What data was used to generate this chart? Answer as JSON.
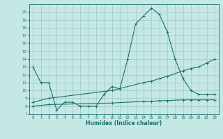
{
  "title": "",
  "xlabel": "Humidex (Indice chaleur)",
  "xlim": [
    -0.5,
    23.5
  ],
  "ylim": [
    7,
    21
  ],
  "yticks": [
    7,
    8,
    9,
    10,
    11,
    12,
    13,
    14,
    15,
    16,
    17,
    18,
    19,
    20
  ],
  "xticks": [
    0,
    1,
    2,
    3,
    4,
    5,
    6,
    7,
    8,
    9,
    10,
    11,
    12,
    13,
    14,
    15,
    16,
    17,
    18,
    19,
    20,
    21,
    22,
    23
  ],
  "background_color": "#c5e8e5",
  "grid_color": "#9dc8c5",
  "line_color": "#1a7070",
  "line1_x": [
    0,
    1,
    2,
    3,
    4,
    5,
    6,
    7,
    8,
    9,
    10,
    11,
    12,
    13,
    14,
    15,
    16,
    17,
    18,
    19,
    20,
    21,
    22,
    23
  ],
  "line1_y": [
    13.0,
    11.0,
    11.0,
    7.5,
    8.5,
    8.5,
    8.0,
    8.0,
    8.0,
    9.5,
    10.5,
    10.2,
    14.0,
    18.5,
    19.5,
    20.5,
    19.7,
    17.5,
    14.0,
    11.5,
    10.0,
    9.5,
    9.5,
    9.5
  ],
  "line2_x": [
    0,
    2,
    10,
    14,
    15,
    16,
    17,
    19,
    20,
    21,
    22,
    23
  ],
  "line2_y": [
    8.5,
    9.0,
    10.0,
    11.0,
    11.2,
    11.5,
    11.8,
    12.5,
    12.8,
    13.0,
    13.5,
    14.0
  ],
  "line3_x": [
    0,
    2,
    10,
    14,
    15,
    16,
    17,
    19,
    20,
    21,
    22,
    23
  ],
  "line3_y": [
    8.0,
    8.2,
    8.4,
    8.6,
    8.6,
    8.7,
    8.7,
    8.8,
    8.8,
    8.8,
    8.8,
    8.8
  ]
}
